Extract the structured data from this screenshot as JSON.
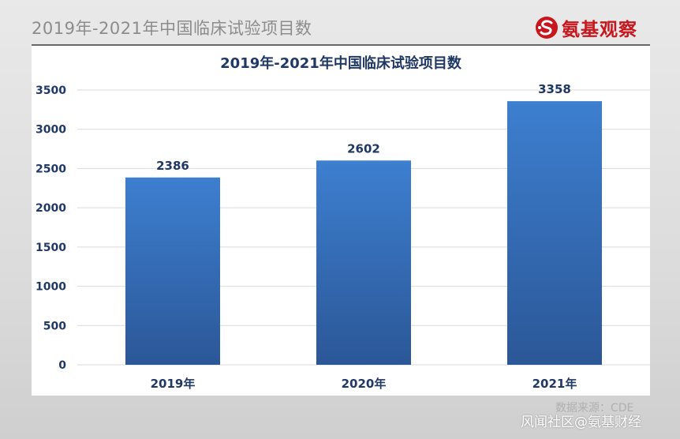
{
  "header": {
    "title": "2019年-2021年中国临床试验项目数",
    "brand_name": "氨基观察",
    "brand_icon": "red-circle-s-logo"
  },
  "footer": {
    "source": "数据来源：CDE",
    "watermark": "风闻社区@氨基财经"
  },
  "colors": {
    "bar_top": "#3d7fd0",
    "bar_bottom": "#2b5797",
    "brand": "#c8161d",
    "title_text": "#1f3864"
  },
  "chart_data": {
    "type": "bar",
    "title": "2019年-2021年中国临床试验项目数",
    "categories": [
      "2019年",
      "2020年",
      "2021年"
    ],
    "values": [
      2386,
      2602,
      3358
    ],
    "value_labels": [
      "2386",
      "2602",
      "3358"
    ],
    "y_ticks": [
      "0",
      "500",
      "1000",
      "1500",
      "2000",
      "2500",
      "3000",
      "3500"
    ],
    "ylim": [
      0,
      3500
    ],
    "grid": true,
    "legend": "none"
  }
}
